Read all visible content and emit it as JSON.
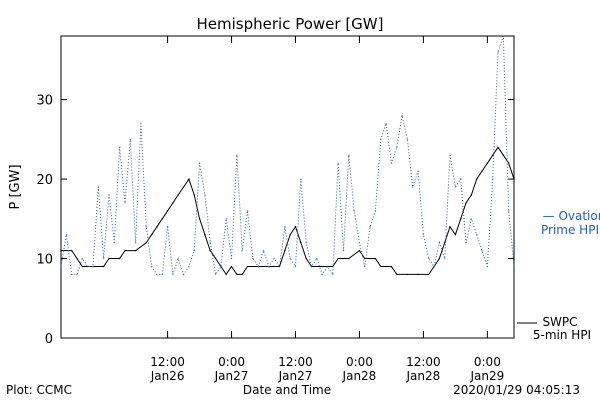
{
  "chart_data": {
    "type": "line",
    "title": "Hemispheric Power [GW]",
    "xlabel": "Date and Time",
    "ylabel": "P [GW]",
    "ylim": [
      0,
      38
    ],
    "yticks": [
      0,
      10,
      20,
      30
    ],
    "xlim": [
      "2020-01-25T16:00",
      "2020-01-29T05:00"
    ],
    "xticks": [
      {
        "x": "2020-01-26T12:00",
        "time": "12:00",
        "date": "Jan26"
      },
      {
        "x": "2020-01-27T00:00",
        "time": "0:00",
        "date": "Jan27"
      },
      {
        "x": "2020-01-27T12:00",
        "time": "12:00",
        "date": "Jan27"
      },
      {
        "x": "2020-01-28T00:00",
        "time": "0:00",
        "date": "Jan28"
      },
      {
        "x": "2020-01-28T12:00",
        "time": "12:00",
        "date": "Jan28"
      },
      {
        "x": "2020-01-29T00:00",
        "time": "0:00",
        "date": "Jan29"
      }
    ],
    "grid": false,
    "series": [
      {
        "name": "SWPC 5-min HPI",
        "color": "#000000",
        "style": "solid",
        "points": [
          [
            "2020-01-25T16:00",
            11
          ],
          [
            "2020-01-25T18:00",
            11
          ],
          [
            "2020-01-25T19:00",
            10
          ],
          [
            "2020-01-25T20:00",
            9
          ],
          [
            "2020-01-25T22:00",
            9
          ],
          [
            "2020-01-26T00:00",
            9
          ],
          [
            "2020-01-26T01:00",
            10
          ],
          [
            "2020-01-26T03:00",
            10
          ],
          [
            "2020-01-26T04:00",
            11
          ],
          [
            "2020-01-26T06:00",
            11
          ],
          [
            "2020-01-26T08:00",
            12
          ],
          [
            "2020-01-26T09:00",
            13
          ],
          [
            "2020-01-26T10:00",
            14
          ],
          [
            "2020-01-26T11:00",
            15
          ],
          [
            "2020-01-26T12:00",
            16
          ],
          [
            "2020-01-26T13:00",
            17
          ],
          [
            "2020-01-26T14:00",
            18
          ],
          [
            "2020-01-26T15:00",
            19
          ],
          [
            "2020-01-26T16:00",
            20
          ],
          [
            "2020-01-26T17:00",
            18
          ],
          [
            "2020-01-26T18:00",
            15
          ],
          [
            "2020-01-26T19:00",
            13
          ],
          [
            "2020-01-26T20:00",
            11
          ],
          [
            "2020-01-26T21:00",
            10
          ],
          [
            "2020-01-26T22:00",
            9
          ],
          [
            "2020-01-26T23:00",
            8
          ],
          [
            "2020-01-27T00:00",
            9
          ],
          [
            "2020-01-27T01:00",
            8
          ],
          [
            "2020-01-27T02:00",
            8
          ],
          [
            "2020-01-27T03:00",
            9
          ],
          [
            "2020-01-27T05:00",
            9
          ],
          [
            "2020-01-27T07:00",
            9
          ],
          [
            "2020-01-27T09:00",
            9
          ],
          [
            "2020-01-27T10:00",
            11
          ],
          [
            "2020-01-27T11:00",
            13
          ],
          [
            "2020-01-27T12:00",
            14
          ],
          [
            "2020-01-27T13:00",
            12
          ],
          [
            "2020-01-27T14:00",
            10
          ],
          [
            "2020-01-27T15:00",
            9
          ],
          [
            "2020-01-27T17:00",
            9
          ],
          [
            "2020-01-27T19:00",
            9
          ],
          [
            "2020-01-27T20:00",
            10
          ],
          [
            "2020-01-27T22:00",
            10
          ],
          [
            "2020-01-28T00:00",
            11
          ],
          [
            "2020-01-28T01:00",
            10
          ],
          [
            "2020-01-28T03:00",
            10
          ],
          [
            "2020-01-28T04:00",
            9
          ],
          [
            "2020-01-28T06:00",
            9
          ],
          [
            "2020-01-28T07:00",
            8
          ],
          [
            "2020-01-28T09:00",
            8
          ],
          [
            "2020-01-28T11:00",
            8
          ],
          [
            "2020-01-28T13:00",
            8
          ],
          [
            "2020-01-28T14:00",
            9
          ],
          [
            "2020-01-28T15:00",
            10
          ],
          [
            "2020-01-28T16:00",
            12
          ],
          [
            "2020-01-28T17:00",
            14
          ],
          [
            "2020-01-28T18:00",
            13
          ],
          [
            "2020-01-28T19:00",
            15
          ],
          [
            "2020-01-28T20:00",
            17
          ],
          [
            "2020-01-28T21:00",
            18
          ],
          [
            "2020-01-28T22:00",
            20
          ],
          [
            "2020-01-28T23:00",
            21
          ],
          [
            "2020-01-29T00:00",
            22
          ],
          [
            "2020-01-29T01:00",
            23
          ],
          [
            "2020-01-29T02:00",
            24
          ],
          [
            "2020-01-29T03:00",
            23
          ],
          [
            "2020-01-29T04:00",
            22
          ],
          [
            "2020-01-29T05:00",
            20
          ]
        ]
      },
      {
        "name": "Ovation Prime HPI",
        "color": "#1f5fbf",
        "style": "dotted",
        "points": [
          [
            "2020-01-25T16:00",
            9
          ],
          [
            "2020-01-25T17:00",
            13
          ],
          [
            "2020-01-25T18:00",
            8
          ],
          [
            "2020-01-25T19:00",
            8
          ],
          [
            "2020-01-25T20:00",
            10
          ],
          [
            "2020-01-25T21:00",
            9
          ],
          [
            "2020-01-25T22:00",
            9
          ],
          [
            "2020-01-25T23:00",
            19
          ],
          [
            "2020-01-26T00:00",
            10
          ],
          [
            "2020-01-26T01:00",
            18
          ],
          [
            "2020-01-26T02:00",
            12
          ],
          [
            "2020-01-26T03:00",
            24
          ],
          [
            "2020-01-26T04:00",
            17
          ],
          [
            "2020-01-26T05:00",
            25
          ],
          [
            "2020-01-26T06:00",
            12
          ],
          [
            "2020-01-26T07:00",
            27
          ],
          [
            "2020-01-26T08:00",
            14
          ],
          [
            "2020-01-26T09:00",
            9
          ],
          [
            "2020-01-26T10:00",
            8
          ],
          [
            "2020-01-26T11:00",
            8
          ],
          [
            "2020-01-26T12:00",
            14
          ],
          [
            "2020-01-26T13:00",
            8
          ],
          [
            "2020-01-26T14:00",
            10
          ],
          [
            "2020-01-26T15:00",
            8
          ],
          [
            "2020-01-26T16:00",
            9
          ],
          [
            "2020-01-26T17:00",
            11
          ],
          [
            "2020-01-26T18:00",
            22
          ],
          [
            "2020-01-26T19:00",
            18
          ],
          [
            "2020-01-26T20:00",
            12
          ],
          [
            "2020-01-26T21:00",
            8
          ],
          [
            "2020-01-26T22:00",
            9
          ],
          [
            "2020-01-26T23:00",
            15
          ],
          [
            "2020-01-27T00:00",
            10
          ],
          [
            "2020-01-27T01:00",
            23
          ],
          [
            "2020-01-27T02:00",
            11
          ],
          [
            "2020-01-27T03:00",
            16
          ],
          [
            "2020-01-27T04:00",
            10
          ],
          [
            "2020-01-27T05:00",
            9
          ],
          [
            "2020-01-27T06:00",
            11
          ],
          [
            "2020-01-27T07:00",
            9
          ],
          [
            "2020-01-27T08:00",
            10
          ],
          [
            "2020-01-27T09:00",
            9
          ],
          [
            "2020-01-27T10:00",
            14
          ],
          [
            "2020-01-27T11:00",
            10
          ],
          [
            "2020-01-27T12:00",
            9
          ],
          [
            "2020-01-27T13:00",
            20
          ],
          [
            "2020-01-27T14:00",
            12
          ],
          [
            "2020-01-27T15:00",
            9
          ],
          [
            "2020-01-27T16:00",
            10
          ],
          [
            "2020-01-27T17:00",
            8
          ],
          [
            "2020-01-27T18:00",
            9
          ],
          [
            "2020-01-27T19:00",
            8
          ],
          [
            "2020-01-27T20:00",
            22
          ],
          [
            "2020-01-27T21:00",
            11
          ],
          [
            "2020-01-27T22:00",
            23
          ],
          [
            "2020-01-27T23:00",
            16
          ],
          [
            "2020-01-28T00:00",
            12
          ],
          [
            "2020-01-28T01:00",
            9
          ],
          [
            "2020-01-28T02:00",
            14
          ],
          [
            "2020-01-28T03:00",
            16
          ],
          [
            "2020-01-28T04:00",
            25
          ],
          [
            "2020-01-28T05:00",
            27
          ],
          [
            "2020-01-28T06:00",
            22
          ],
          [
            "2020-01-28T07:00",
            24
          ],
          [
            "2020-01-28T08:00",
            28
          ],
          [
            "2020-01-28T09:00",
            25
          ],
          [
            "2020-01-28T10:00",
            19
          ],
          [
            "2020-01-28T11:00",
            21
          ],
          [
            "2020-01-28T12:00",
            13
          ],
          [
            "2020-01-28T13:00",
            10
          ],
          [
            "2020-01-28T14:00",
            9
          ],
          [
            "2020-01-28T15:00",
            12
          ],
          [
            "2020-01-28T16:00",
            10
          ],
          [
            "2020-01-28T17:00",
            23
          ],
          [
            "2020-01-28T18:00",
            19
          ],
          [
            "2020-01-28T19:00",
            20
          ],
          [
            "2020-01-28T20:00",
            12
          ],
          [
            "2020-01-28T21:00",
            15
          ],
          [
            "2020-01-28T22:00",
            13
          ],
          [
            "2020-01-28T23:00",
            11
          ],
          [
            "2020-01-29T00:00",
            9
          ],
          [
            "2020-01-29T01:00",
            20
          ],
          [
            "2020-01-29T02:00",
            36
          ],
          [
            "2020-01-29T03:00",
            38
          ],
          [
            "2020-01-29T04:00",
            16
          ],
          [
            "2020-01-29T05:00",
            9
          ]
        ]
      }
    ],
    "legend": [
      {
        "line1": "— Ovation",
        "line2": "Prime HPI",
        "color": "#1f5fbf",
        "placement": "right-middle"
      },
      {
        "line1": "SWPC",
        "line2": "5-min HPI",
        "color": "#000000",
        "placement": "right-bottom"
      }
    ],
    "footer": {
      "left": "Plot: CCMC",
      "right": "2020/01/29 04:05:13"
    }
  }
}
